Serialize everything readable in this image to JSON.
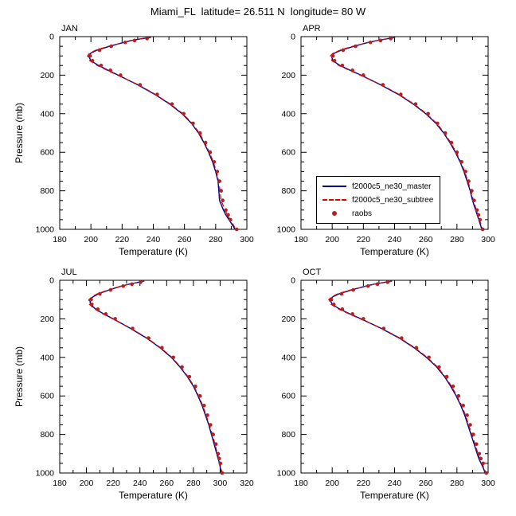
{
  "title": "Miami_FL  latitude= 26.511 N  longitude= 80 W",
  "legend": {
    "items": [
      {
        "label": "f2000c5_ne30_master",
        "style": "solid",
        "color": "#00008b"
      },
      {
        "label": "f2000c5_ne30_subtree",
        "style": "dashed",
        "color": "#e10000"
      },
      {
        "label": "raobs",
        "style": "dot",
        "color": "#b22222"
      }
    ]
  },
  "chart_data": {
    "type": "line",
    "title": "Miami_FL  latitude= 26.511 N  longitude= 80 W",
    "xlabel": "Temperature (K)",
    "ylabel": "Pressure (mb)",
    "y_axis_inverted": true,
    "grid": false,
    "legend_position": "inside top-right panel, lower left",
    "panels": [
      {
        "title": "JAN",
        "xlabel": "Temperature (K)",
        "ylabel": "Pressure (mb)",
        "xlim": [
          180,
          300
        ],
        "xticks": [
          180,
          200,
          220,
          240,
          260,
          280,
          300
        ],
        "xminor": 10,
        "ylim": [
          0,
          1000
        ],
        "yticks": [
          0,
          200,
          400,
          600,
          800,
          1000
        ],
        "yminor": 50,
        "p_levels": [
          5,
          10,
          20,
          30,
          50,
          70,
          85,
          100,
          125,
          150,
          175,
          200,
          250,
          300,
          350,
          400,
          450,
          500,
          550,
          600,
          650,
          700,
          750,
          800,
          850,
          900,
          925,
          950,
          975,
          1000
        ],
        "p_obs": [
          10,
          20,
          30,
          50,
          70,
          100,
          125,
          150,
          175,
          200,
          250,
          300,
          350,
          400,
          450,
          500,
          550,
          600,
          650,
          700,
          750,
          800,
          850,
          900,
          925,
          950,
          1000
        ],
        "series": [
          {
            "name": "f2000c5_ne30_master",
            "style": "solid",
            "color": "#00008b",
            "t": [
              238,
              233,
              226,
              221,
              212,
              204,
              200,
              198.5,
              200,
              205,
              211,
              217.5,
              230,
              241,
              250.5,
              258.5,
              264.5,
              269,
              272.5,
              275.5,
              278,
              280,
              281.5,
              282,
              282.5,
              285,
              286.5,
              288.5,
              290.5,
              292.5
            ]
          },
          {
            "name": "f2000c5_ne30_subtree",
            "style": "dashed",
            "color": "#e10000",
            "t": [
              238.5,
              233.5,
              226.5,
              221.3,
              211.2,
              203.2,
              199.2,
              197.8,
              199.3,
              204.2,
              210.5,
              217,
              230.5,
              241.5,
              251,
              259,
              265,
              269.5,
              273,
              276,
              278.5,
              280.5,
              282,
              282.8,
              283.5,
              286,
              287.5,
              289.3,
              291.2,
              293
            ]
          },
          {
            "name": "raobs",
            "style": "dots",
            "color": "#b22222",
            "p": "obs",
            "t": [
              236,
              228,
              222,
              213,
              205.5,
              199.5,
              201,
              206.5,
              212.5,
              219,
              231.5,
              242.5,
              252,
              259.5,
              265.5,
              270,
              273.5,
              276.5,
              279,
              281,
              282.5,
              283.5,
              284.5,
              286.5,
              288,
              289.5,
              293.5
            ]
          }
        ]
      },
      {
        "title": "APR",
        "xlabel": "Temperature (K)",
        "ylabel": "",
        "xlim": [
          180,
          300
        ],
        "xticks": [
          180,
          200,
          220,
          240,
          260,
          280,
          300
        ],
        "xminor": 10,
        "ylim": [
          0,
          1000
        ],
        "yticks": [
          0,
          200,
          400,
          600,
          800,
          1000
        ],
        "yminor": 50,
        "p_levels": [
          5,
          10,
          20,
          30,
          50,
          70,
          85,
          100,
          125,
          150,
          175,
          200,
          250,
          300,
          350,
          400,
          450,
          500,
          550,
          600,
          650,
          700,
          750,
          800,
          850,
          900,
          925,
          950,
          975,
          1000
        ],
        "p_obs": [
          10,
          20,
          30,
          50,
          70,
          100,
          125,
          150,
          175,
          200,
          250,
          300,
          350,
          400,
          450,
          500,
          550,
          600,
          650,
          700,
          750,
          800,
          850,
          900,
          925,
          950,
          1000
        ],
        "series": [
          {
            "name": "f2000c5_ne30_master",
            "style": "solid",
            "color": "#00008b",
            "t": [
              240,
              236,
              229,
              223,
              214,
              206,
              201.5,
              199.5,
              200.5,
              205,
              211.5,
              218.5,
              231,
              242.5,
              252,
              260,
              266.5,
              271.5,
              275.5,
              279,
              282,
              284.5,
              286.5,
              288.5,
              290,
              292,
              293,
              294,
              295,
              296
            ]
          },
          {
            "name": "f2000c5_ne30_subtree",
            "style": "dashed",
            "color": "#e10000",
            "t": [
              240.4,
              236.4,
              229.4,
              223.2,
              213.2,
              205.2,
              200.7,
              198.8,
              199.8,
              204.3,
              211,
              218,
              231.5,
              243,
              252.5,
              260.5,
              267,
              272,
              276,
              279.5,
              282.5,
              285,
              287,
              289,
              290.6,
              292.5,
              293.5,
              294.5,
              295.5,
              296.5
            ]
          },
          {
            "name": "raobs",
            "style": "dots",
            "color": "#b22222",
            "p": "obs",
            "t": [
              237.5,
              231,
              224.5,
              215,
              207,
              200.5,
              201.5,
              206.5,
              213,
              220,
              232.5,
              244,
              253.5,
              261.5,
              267.5,
              272.5,
              276.5,
              280,
              283,
              285.5,
              287.5,
              289.5,
              291,
              292.8,
              293.8,
              294.8,
              296.5
            ]
          }
        ]
      },
      {
        "title": "JUL",
        "xlabel": "Temperature (K)",
        "ylabel": "Pressure (mb)",
        "xlim": [
          180,
          320
        ],
        "xticks": [
          180,
          200,
          220,
          240,
          260,
          280,
          300,
          320
        ],
        "xminor": 10,
        "ylim": [
          0,
          1000
        ],
        "yticks": [
          0,
          200,
          400,
          600,
          800,
          1000
        ],
        "yminor": 50,
        "p_levels": [
          5,
          10,
          20,
          30,
          50,
          70,
          85,
          100,
          125,
          150,
          175,
          200,
          250,
          300,
          350,
          400,
          450,
          500,
          550,
          600,
          650,
          700,
          750,
          800,
          850,
          900,
          925,
          950,
          975,
          1000
        ],
        "p_obs": [
          10,
          20,
          30,
          50,
          70,
          100,
          125,
          150,
          175,
          200,
          250,
          300,
          350,
          400,
          450,
          500,
          550,
          600,
          650,
          700,
          750,
          800,
          850,
          900,
          925,
          950,
          1000
        ],
        "series": [
          {
            "name": "f2000c5_ne30_master",
            "style": "solid",
            "color": "#00008b",
            "t": [
              243,
              239,
              232,
              226,
              217,
              209,
              205,
              202.5,
              203,
              207,
              213,
              220,
              233,
              245,
              255,
              263.5,
              270,
              275.5,
              280,
              283.5,
              286.5,
              289,
              291.5,
              293.5,
              295.5,
              297.5,
              298.5,
              299.5,
              300.2,
              301
            ]
          },
          {
            "name": "f2000c5_ne30_subtree",
            "style": "dashed",
            "color": "#e10000",
            "t": [
              243.4,
              239.4,
              232.4,
              226.2,
              216.2,
              208.2,
              204.2,
              201.8,
              202.3,
              206.3,
              212.5,
              219.5,
              233.5,
              245.5,
              255.5,
              264,
              270.5,
              276,
              280.5,
              284,
              287,
              289.5,
              292,
              294.2,
              296.2,
              298,
              299,
              300,
              300.7,
              301.5
            ]
          },
          {
            "name": "raobs",
            "style": "dots",
            "color": "#b22222",
            "p": "obs",
            "t": [
              240.5,
              234,
              227.5,
              218,
              210,
              203.5,
              204,
              208.5,
              214.5,
              221.5,
              234.5,
              246.5,
              256.5,
              265,
              271.5,
              277,
              281.5,
              285,
              288,
              290.5,
              292.8,
              294.8,
              296.8,
              298.5,
              299.3,
              300.2,
              301.5
            ]
          }
        ]
      },
      {
        "title": "OCT",
        "xlabel": "Temperature (K)",
        "ylabel": "",
        "xlim": [
          180,
          300
        ],
        "xticks": [
          180,
          200,
          220,
          240,
          260,
          280,
          300
        ],
        "xminor": 10,
        "ylim": [
          0,
          1000
        ],
        "yticks": [
          0,
          200,
          400,
          600,
          800,
          1000
        ],
        "yminor": 50,
        "p_levels": [
          5,
          10,
          20,
          30,
          50,
          70,
          85,
          100,
          125,
          150,
          175,
          200,
          250,
          300,
          350,
          400,
          450,
          500,
          550,
          600,
          650,
          700,
          750,
          800,
          850,
          900,
          925,
          950,
          975,
          1000
        ],
        "p_obs": [
          10,
          20,
          30,
          50,
          70,
          100,
          125,
          150,
          175,
          200,
          250,
          300,
          350,
          400,
          450,
          500,
          550,
          600,
          650,
          700,
          750,
          800,
          850,
          900,
          925,
          950,
          1000
        ],
        "series": [
          {
            "name": "f2000c5_ne30_master",
            "style": "solid",
            "color": "#00008b",
            "t": [
              238,
              234,
              227,
              221.5,
              212.5,
              204.5,
              200.5,
              198.5,
              200,
              205,
              211.5,
              218.5,
              231.5,
              243,
              252.5,
              260.5,
              267,
              272,
              276,
              279.5,
              282.5,
              285,
              287,
              289,
              291,
              293,
              294,
              295.5,
              297,
              298
            ]
          },
          {
            "name": "f2000c5_ne30_subtree",
            "style": "dashed",
            "color": "#e10000",
            "t": [
              238.4,
              234.4,
              227.4,
              221.7,
              211.7,
              203.7,
              199.7,
              197.8,
              199.3,
              204.3,
              211,
              218,
              232,
              243.5,
              253,
              261,
              267.5,
              272.5,
              276.5,
              280,
              283,
              285.5,
              287.5,
              289.6,
              291.6,
              293.5,
              294.5,
              296,
              297.5,
              298.5
            ]
          },
          {
            "name": "raobs",
            "style": "dots",
            "color": "#b22222",
            "p": "obs",
            "t": [
              235.5,
              229,
              223,
              213.5,
              206,
              199.5,
              201,
              206.5,
              213,
              220,
              233,
              244.5,
              254,
              262,
              268.5,
              273.5,
              277.5,
              281,
              284,
              286.5,
              288.5,
              290.5,
              292.5,
              294.3,
              295.3,
              296.8,
              298.8
            ]
          }
        ]
      }
    ]
  }
}
